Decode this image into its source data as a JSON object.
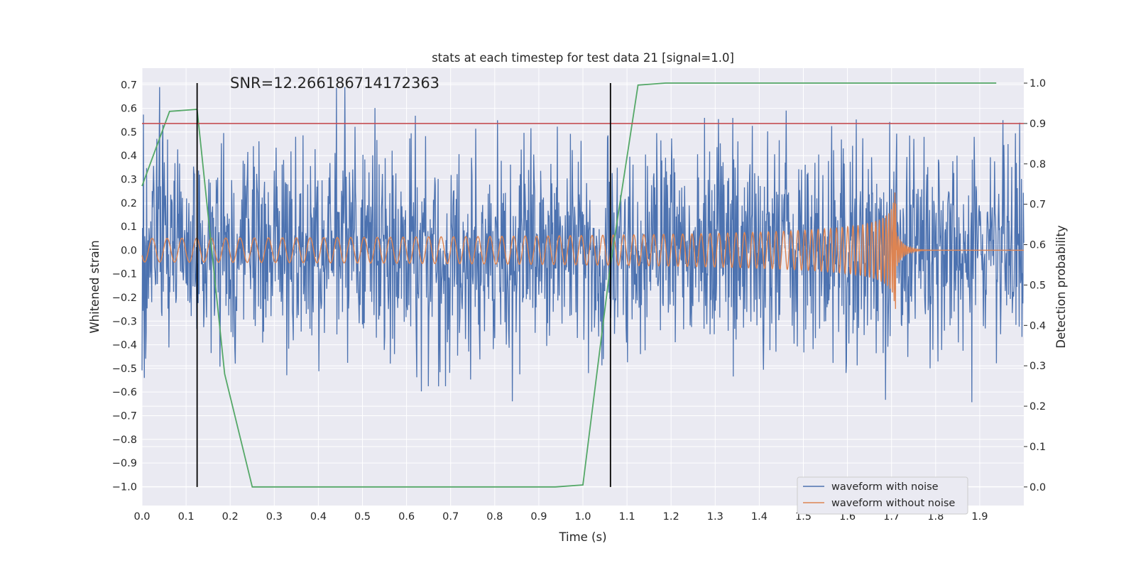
{
  "chart_data": {
    "type": "line",
    "title": "stats at each timestep for test data 21 [signal=1.0]",
    "annotation": "SNR=12.266186714172363",
    "xlabel": "Time (s)",
    "ylabel_left": "Whitened strain",
    "ylabel_right": "Detection probability",
    "xlim": [
      0.0,
      2.0
    ],
    "ylim_left": [
      -1.08,
      0.77
    ],
    "ylim_right": [
      -0.046,
      1.037
    ],
    "grid": true,
    "legend_position": "lower-right",
    "x_ticks": [
      "0.0",
      "0.1",
      "0.2",
      "0.3",
      "0.4",
      "0.5",
      "0.6",
      "0.7",
      "0.8",
      "0.9",
      "1.0",
      "1.1",
      "1.2",
      "1.3",
      "1.4",
      "1.5",
      "1.6",
      "1.7",
      "1.8",
      "1.9"
    ],
    "y_left_ticks": [
      "0.7",
      "0.6",
      "0.5",
      "0.4",
      "0.3",
      "0.2",
      "0.1",
      "0.0",
      "−0.1",
      "−0.2",
      "−0.3",
      "−0.4",
      "−0.5",
      "−0.6",
      "−0.7",
      "−0.8",
      "−0.9",
      "−1.0"
    ],
    "y_right_ticks": [
      "1.0",
      "0.9",
      "0.8",
      "0.7",
      "0.6",
      "0.5",
      "0.4",
      "0.3",
      "0.2",
      "0.1",
      "0.0"
    ],
    "series": [
      {
        "name": "waveform with noise",
        "color": "#4c72b0",
        "axis": "left",
        "kind": "noise",
        "amplitude_std": 0.22,
        "x_range": [
          0.0,
          2.0
        ]
      },
      {
        "name": "waveform without noise",
        "color": "#dd8452",
        "axis": "left",
        "kind": "chirp",
        "merger_time": 1.71,
        "peak_amplitude": 0.37,
        "x_range": [
          0.0,
          2.0
        ]
      },
      {
        "name": "detection probability",
        "color": "#55a868",
        "axis": "right",
        "x": [
          0.0,
          0.0625,
          0.125,
          0.1875,
          0.25,
          0.3125,
          0.9375,
          1.0,
          1.0625,
          1.125,
          1.1875,
          1.25,
          1.9375
        ],
        "y": [
          0.745,
          0.93,
          0.935,
          0.28,
          0.0,
          0.0,
          0.0,
          0.005,
          0.55,
          0.995,
          1.0,
          1.0,
          1.0
        ]
      }
    ],
    "threshold": {
      "axis": "right",
      "value": 0.9,
      "color": "#c44e52"
    },
    "vertical_lines": {
      "color": "#000000",
      "x": [
        0.125,
        1.0625
      ],
      "y_range_right": [
        0.0,
        1.0
      ]
    }
  }
}
